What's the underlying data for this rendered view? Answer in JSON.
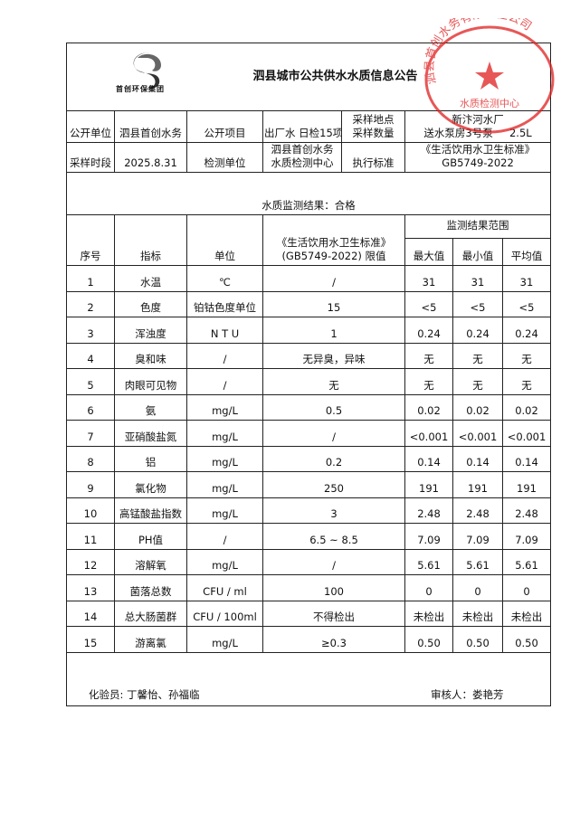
{
  "header": {
    "logo_text": "首创环保集团",
    "title": "泗县城市公共供水水质信息公告",
    "stamp_text": "泗县首创水务有限责任公司",
    "stamp_sub": "水质检测中心"
  },
  "info": {
    "publisher_label": "公开单位",
    "publisher": "泗县首创水务",
    "item_label": "公开项目",
    "item": "出厂水 日检15项",
    "site_label": "采样地点",
    "qty_label": "采样数量",
    "site": "新汴河水厂",
    "site2": "送水泵房3号泵",
    "qty": "2.5L",
    "period_label": "采样时段",
    "period": "2025.8.31",
    "lab_label": "检测单位",
    "lab1": "泗县首创水务",
    "lab2": "水质检测中心",
    "std_label": "执行标准",
    "std1": "《生活饮用水卫生标准》",
    "std2": "GB5749-2022"
  },
  "result": "水质监测结果：合格",
  "columns": {
    "no": "序号",
    "index": "指标",
    "unit": "单位",
    "limit1": "《生活饮用水卫生标准》",
    "limit2": "(GB5749-2022) 限值",
    "range": "监测结果范围",
    "max": "最大值",
    "min": "最小值",
    "avg": "平均值"
  },
  "rows": [
    {
      "no": "1",
      "name": "水温",
      "unit": "℃",
      "limit": "/",
      "max": "31",
      "min": "31",
      "avg": "31"
    },
    {
      "no": "2",
      "name": "色度",
      "unit": "铂钴色度单位",
      "limit": "15",
      "max": "<5",
      "min": "<5",
      "avg": "<5"
    },
    {
      "no": "3",
      "name": "浑浊度",
      "unit": "N T U",
      "limit": "1",
      "max": "0.24",
      "min": "0.24",
      "avg": "0.24"
    },
    {
      "no": "4",
      "name": "臭和味",
      "unit": "/",
      "limit": "无异臭，异味",
      "max": "无",
      "min": "无",
      "avg": "无"
    },
    {
      "no": "5",
      "name": "肉眼可见物",
      "unit": "/",
      "limit": "无",
      "max": "无",
      "min": "无",
      "avg": "无"
    },
    {
      "no": "6",
      "name": "氨",
      "unit": "mg/L",
      "limit": "0.5",
      "max": "0.02",
      "min": "0.02",
      "avg": "0.02"
    },
    {
      "no": "7",
      "name": "亚硝酸盐氮",
      "unit": "mg/L",
      "limit": "/",
      "max": "<0.001",
      "min": "<0.001",
      "avg": "<0.001"
    },
    {
      "no": "8",
      "name": "铝",
      "unit": "mg/L",
      "limit": "0.2",
      "max": "0.14",
      "min": "0.14",
      "avg": "0.14"
    },
    {
      "no": "9",
      "name": "氯化物",
      "unit": "mg/L",
      "limit": "250",
      "max": "191",
      "min": "191",
      "avg": "191"
    },
    {
      "no": "10",
      "name": "高锰酸盐指数",
      "unit": "mg/L",
      "limit": "3",
      "max": "2.48",
      "min": "2.48",
      "avg": "2.48"
    },
    {
      "no": "11",
      "name": "PH值",
      "unit": "/",
      "limit": "6.5 ~ 8.5",
      "max": "7.09",
      "min": "7.09",
      "avg": "7.09"
    },
    {
      "no": "12",
      "name": "溶解氧",
      "unit": "mg/L",
      "limit": "/",
      "max": "5.61",
      "min": "5.61",
      "avg": "5.61"
    },
    {
      "no": "13",
      "name": "菌落总数",
      "unit": "CFU / ml",
      "limit": "100",
      "max": "0",
      "min": "0",
      "avg": "0"
    },
    {
      "no": "14",
      "name": "总大肠菌群",
      "unit": "CFU / 100ml",
      "limit": "不得检出",
      "max": "未检出",
      "min": "未检出",
      "avg": "未检出"
    },
    {
      "no": "15",
      "name": "游离氯",
      "unit": "mg/L",
      "limit": "≥0.3",
      "max": "0.50",
      "min": "0.50",
      "avg": "0.50"
    }
  ],
  "footer": {
    "tester": "化验员: 丁馨怡、孙福临",
    "reviewer": "审核人：娄艳芳"
  },
  "colors": {
    "stamp": "#e02020"
  }
}
